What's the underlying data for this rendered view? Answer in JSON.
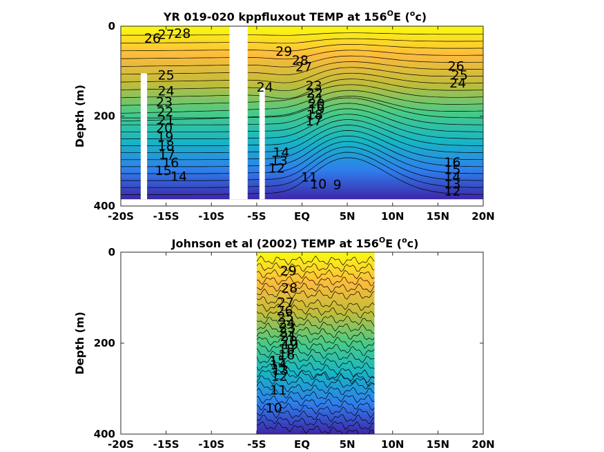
{
  "chart_data": [
    {
      "type": "heatmap",
      "subtype": "filled-contour",
      "title": "YR 019-020 kppfluxout TEMP at 156",
      "title_sup": "O",
      "title_tail": "E (",
      "title_sup2": "o",
      "title_end": "c)",
      "ylabel": "Depth (m)",
      "xlim": [
        -20,
        20
      ],
      "ylim": [
        0,
        400
      ],
      "y_reversed": true,
      "x_ticks": [
        -20,
        -15,
        -10,
        -5,
        0,
        5,
        10,
        15,
        20
      ],
      "x_tick_labels": [
        "-20S",
        "-15S",
        "-10S",
        "-5S",
        "EQ",
        "5N",
        "10N",
        "15N",
        "20N"
      ],
      "y_ticks": [
        0,
        200,
        400
      ],
      "y_tick_labels": [
        "0",
        "200",
        "400"
      ],
      "data_extent": {
        "x": [
          -20,
          20
        ],
        "y": [
          0,
          385
        ]
      },
      "colormap": [
        "#3d26a8",
        "#2f7eec",
        "#17b5c6",
        "#48cb86",
        "#c1bc3a",
        "#fdbb3d",
        "#f9fb0e"
      ],
      "color_range": [
        8,
        30
      ],
      "missing_bands": [
        {
          "x": [
            -17.8,
            -17.1
          ],
          "y": [
            105,
            385
          ]
        },
        {
          "x": [
            -8.0,
            -6.0
          ],
          "y": [
            0,
            385
          ]
        },
        {
          "x": [
            -4.7,
            -4.1
          ],
          "y": [
            138,
            385
          ]
        }
      ],
      "contour_labels": [
        {
          "value": "28",
          "x": -13.2,
          "y": 15
        },
        {
          "value": "27",
          "x": -15.0,
          "y": 18
        },
        {
          "value": "26",
          "x": -16.5,
          "y": 26
        },
        {
          "value": "25",
          "x": -15.0,
          "y": 108
        },
        {
          "value": "24",
          "x": -15.0,
          "y": 143
        },
        {
          "value": "23",
          "x": -15.2,
          "y": 168
        },
        {
          "value": "22",
          "x": -15.1,
          "y": 190
        },
        {
          "value": "21",
          "x": -15.0,
          "y": 208
        },
        {
          "value": "20",
          "x": -15.2,
          "y": 225
        },
        {
          "value": "19",
          "x": -15.1,
          "y": 245
        },
        {
          "value": "18",
          "x": -15.0,
          "y": 265
        },
        {
          "value": "17",
          "x": -14.9,
          "y": 285
        },
        {
          "value": "16",
          "x": -14.5,
          "y": 303
        },
        {
          "value": "15",
          "x": -15.3,
          "y": 320
        },
        {
          "value": "14",
          "x": -13.6,
          "y": 333
        },
        {
          "value": "29",
          "x": -2.0,
          "y": 55
        },
        {
          "value": "28",
          "x": -0.2,
          "y": 75
        },
        {
          "value": "27",
          "x": 0.2,
          "y": 90
        },
        {
          "value": "24",
          "x": -4.1,
          "y": 135
        },
        {
          "value": "23",
          "x": 1.3,
          "y": 132
        },
        {
          "value": "22",
          "x": 1.4,
          "y": 148
        },
        {
          "value": "21",
          "x": 1.5,
          "y": 160
        },
        {
          "value": "20",
          "x": 1.6,
          "y": 172
        },
        {
          "value": "19",
          "x": 1.6,
          "y": 184
        },
        {
          "value": "18",
          "x": 1.4,
          "y": 196
        },
        {
          "value": "17",
          "x": 1.3,
          "y": 210
        },
        {
          "value": "14",
          "x": -2.3,
          "y": 280
        },
        {
          "value": "13",
          "x": -2.5,
          "y": 298
        },
        {
          "value": "12",
          "x": -2.8,
          "y": 315
        },
        {
          "value": "11",
          "x": 0.8,
          "y": 335
        },
        {
          "value": "10",
          "x": 1.8,
          "y": 350
        },
        {
          "value": "9",
          "x": 3.9,
          "y": 352
        },
        {
          "value": "26",
          "x": 17.0,
          "y": 88
        },
        {
          "value": "25",
          "x": 17.4,
          "y": 108
        },
        {
          "value": "24",
          "x": 17.2,
          "y": 126
        },
        {
          "value": "16",
          "x": 16.6,
          "y": 302
        },
        {
          "value": "15",
          "x": 16.6,
          "y": 318
        },
        {
          "value": "14",
          "x": 16.6,
          "y": 334
        },
        {
          "value": "13",
          "x": 16.6,
          "y": 350
        },
        {
          "value": "12",
          "x": 16.6,
          "y": 366
        }
      ]
    },
    {
      "type": "heatmap",
      "subtype": "filled-contour",
      "title": "Johnson et al (2002) TEMP at 156",
      "title_sup": "O",
      "title_tail": "E (",
      "title_sup2": "o",
      "title_end": "c)",
      "ylabel": "Depth (m)",
      "xlim": [
        -20,
        20
      ],
      "ylim": [
        0,
        400
      ],
      "y_reversed": true,
      "x_ticks": [
        -20,
        -15,
        -10,
        -5,
        0,
        5,
        10,
        15,
        20
      ],
      "x_tick_labels": [
        "-20S",
        "-15S",
        "-10S",
        "-5S",
        "EQ",
        "5N",
        "10N",
        "15N",
        "20N"
      ],
      "y_ticks": [
        0,
        200,
        400
      ],
      "y_tick_labels": [
        "0",
        "200",
        "400"
      ],
      "data_extent": {
        "x": [
          -5,
          8
        ],
        "y": [
          0,
          400
        ]
      },
      "colormap": [
        "#3d26a8",
        "#2f7eec",
        "#17b5c6",
        "#48cb86",
        "#c1bc3a",
        "#fdbb3d",
        "#f9fb0e"
      ],
      "color_range": [
        8,
        30
      ],
      "contour_labels": [
        {
          "value": "29",
          "x": -1.5,
          "y": 40
        },
        {
          "value": "28",
          "x": -1.4,
          "y": 78
        },
        {
          "value": "27",
          "x": -1.8,
          "y": 110
        },
        {
          "value": "26",
          "x": -1.9,
          "y": 128
        },
        {
          "value": "25",
          "x": -1.8,
          "y": 142
        },
        {
          "value": "24",
          "x": -1.7,
          "y": 155
        },
        {
          "value": "23",
          "x": -1.6,
          "y": 165
        },
        {
          "value": "22",
          "x": -1.6,
          "y": 175
        },
        {
          "value": "21",
          "x": -1.5,
          "y": 185
        },
        {
          "value": "20",
          "x": -1.4,
          "y": 195
        },
        {
          "value": "19",
          "x": -1.3,
          "y": 202
        },
        {
          "value": "18",
          "x": -1.7,
          "y": 212
        },
        {
          "value": "16",
          "x": -1.7,
          "y": 225
        },
        {
          "value": "15",
          "x": -2.7,
          "y": 238
        },
        {
          "value": "14",
          "x": -2.6,
          "y": 247
        },
        {
          "value": "13",
          "x": -2.4,
          "y": 258
        },
        {
          "value": "12",
          "x": -2.5,
          "y": 272
        },
        {
          "value": "11",
          "x": -2.6,
          "y": 302
        },
        {
          "value": "10",
          "x": -3.1,
          "y": 342
        }
      ]
    }
  ]
}
